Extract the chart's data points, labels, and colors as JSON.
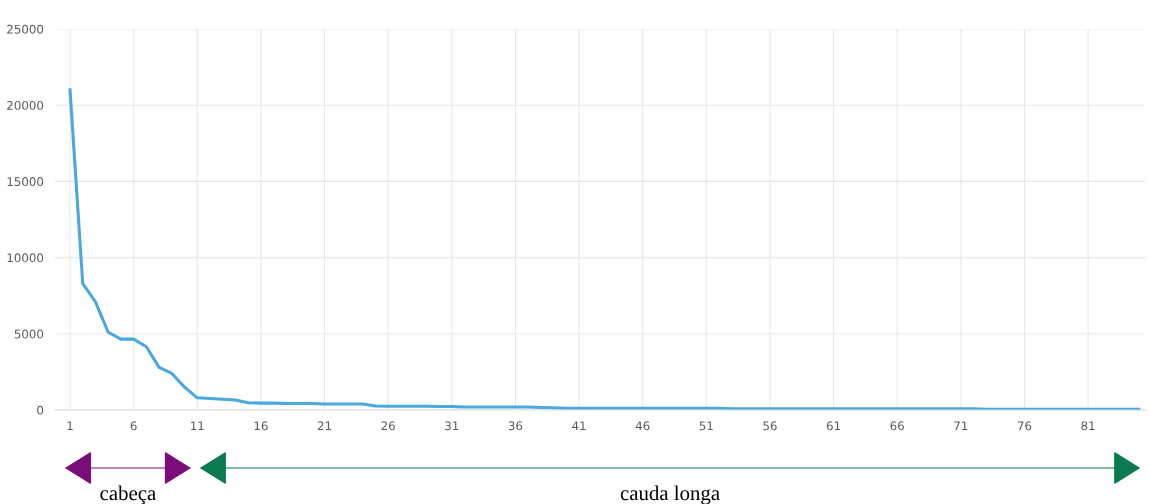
{
  "chart_data": {
    "type": "line",
    "categories": [
      "1",
      null,
      null,
      null,
      null,
      "6",
      null,
      null,
      null,
      null,
      "11",
      null,
      null,
      null,
      null,
      "16",
      null,
      null,
      null,
      null,
      "21",
      null,
      null,
      null,
      null,
      "26",
      null,
      null,
      null,
      null,
      "31",
      null,
      null,
      null,
      null,
      "36",
      null,
      null,
      null,
      null,
      "41",
      null,
      null,
      null,
      null,
      "46",
      null,
      null,
      null,
      null,
      "51",
      null,
      null,
      null,
      null,
      "56",
      null,
      null,
      null,
      null,
      "61",
      null,
      null,
      null,
      null,
      "66",
      null,
      null,
      null,
      null,
      "71",
      null,
      null,
      null,
      null,
      "76",
      null,
      null,
      null,
      null,
      "81",
      null,
      null,
      null,
      null
    ],
    "series": [
      {
        "color": "#4aa8e0",
        "values": [
          21000,
          8300,
          7100,
          5100,
          4650,
          4650,
          4150,
          2800,
          2400,
          1500,
          800,
          750,
          700,
          650,
          480,
          450,
          450,
          430,
          430,
          430,
          400,
          400,
          400,
          400,
          260,
          250,
          250,
          240,
          240,
          230,
          230,
          200,
          200,
          200,
          200,
          200,
          200,
          170,
          150,
          120,
          120,
          120,
          120,
          120,
          120,
          120,
          120,
          120,
          120,
          120,
          120,
          120,
          80,
          80,
          80,
          80,
          80,
          80,
          80,
          80,
          80,
          80,
          80,
          80,
          80,
          80,
          80,
          80,
          80,
          80,
          80,
          80,
          50,
          50,
          50,
          50,
          50,
          50,
          50,
          50,
          50,
          50,
          50,
          50,
          50
        ]
      }
    ],
    "ylim": [
      0,
      25000
    ],
    "yticks": [
      0,
      5000,
      10000,
      15000,
      20000,
      25000
    ],
    "grid": true,
    "marker": "none",
    "line_style": "solid",
    "annotations": [
      "cabeça",
      "cauda longa"
    ]
  }
}
